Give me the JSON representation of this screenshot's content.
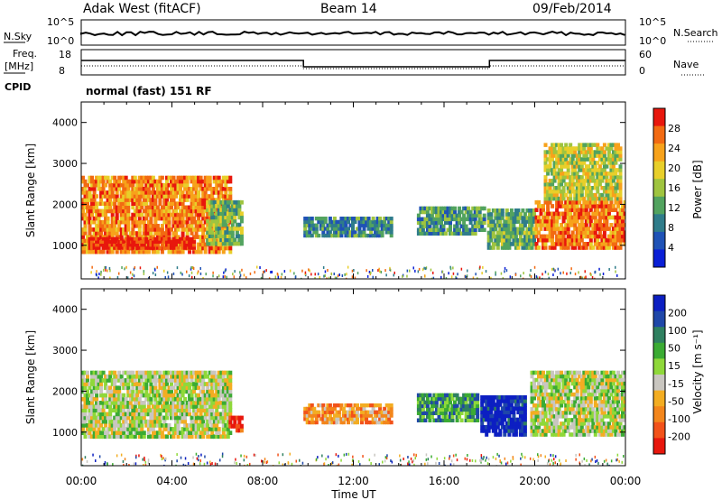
{
  "header": {
    "station": "Adak West (fitACF)",
    "beam": "Beam 14",
    "date": "09/Feb/2014"
  },
  "top_panels": {
    "nsky_label": "N.Sky",
    "nsky_ticks": [
      "10^5",
      "10^0"
    ],
    "nsearch_label": "N.Search",
    "nsearch_ticks": [
      "10^5",
      "10^0"
    ],
    "freq_label": "Freq.",
    "freq_unit": "[MHz]",
    "freq_ticks": [
      "18",
      "8"
    ],
    "nave_label": "Nave",
    "nave_ticks": [
      "60",
      "0"
    ],
    "cpid_label": "CPID",
    "cpid_text": "normal (fast) 151 RF"
  },
  "colors": {
    "power_scale": [
      "#0a1fd6",
      "#1f52b6",
      "#2f7c8a",
      "#52a35f",
      "#9fc43f",
      "#e8cf2a",
      "#f7a21b",
      "#f26a12",
      "#e8170d"
    ],
    "velocity_scale": [
      "#e8170d",
      "#f2521a",
      "#f3861c",
      "#f3ad22",
      "#c9c6c0",
      "#8fd83a",
      "#3bab33",
      "#2f8060",
      "#1f47a8",
      "#0c1fc2"
    ]
  },
  "chart_data": [
    {
      "type": "heatmap",
      "name": "power",
      "ylabel": "Slant Range [km]",
      "colorbar_label": "Power [dB]",
      "colorbar_ticks": [
        "28",
        "24",
        "20",
        "16",
        "12",
        "8",
        "4"
      ],
      "x_ticks": [
        "00:00",
        "04:00",
        "08:00",
        "12:00",
        "16:00",
        "20:00",
        "00:00"
      ],
      "y_ticks": [
        "4000",
        "3000",
        "2000",
        "1000"
      ],
      "xlim_hours": [
        0,
        24
      ],
      "ylim_km": [
        180,
        4500
      ],
      "regions": [
        {
          "t0": 0.0,
          "t1": 6.6,
          "r0": 800,
          "r1": 2700,
          "level": 0.78
        },
        {
          "t0": 0.3,
          "t1": 5.0,
          "r0": 900,
          "r1": 1200,
          "level": 0.95
        },
        {
          "t0": 5.5,
          "t1": 7.1,
          "r0": 1000,
          "r1": 2100,
          "level": 0.45
        },
        {
          "t0": 9.8,
          "t1": 13.7,
          "r0": 1200,
          "r1": 1700,
          "level": 0.3
        },
        {
          "t0": 14.8,
          "t1": 17.8,
          "r0": 1250,
          "r1": 1950,
          "level": 0.35
        },
        {
          "t0": 17.9,
          "t1": 20.0,
          "r0": 900,
          "r1": 1900,
          "level": 0.4
        },
        {
          "t0": 20.0,
          "t1": 24.0,
          "r0": 900,
          "r1": 2100,
          "level": 0.8
        },
        {
          "t0": 20.4,
          "t1": 23.8,
          "r0": 2100,
          "r1": 3500,
          "level": 0.55
        }
      ]
    },
    {
      "type": "heatmap",
      "name": "velocity",
      "ylabel": "Slant Range [km]",
      "colorbar_label": "Velocity [m s⁻¹]",
      "colorbar_ticks": [
        "200",
        "100",
        "50",
        "15",
        "-15",
        "-50",
        "-100",
        "-200"
      ],
      "x_ticks": [
        "00:00",
        "04:00",
        "08:00",
        "12:00",
        "16:00",
        "20:00",
        "00:00"
      ],
      "xlabel": "Time UT",
      "y_ticks": [
        "4000",
        "3000",
        "2000",
        "1000"
      ],
      "xlim_hours": [
        0,
        24
      ],
      "ylim_km": [
        180,
        4500
      ],
      "regions": [
        {
          "t0": 0.0,
          "t1": 6.6,
          "r0": 850,
          "r1": 2500,
          "level": 0.5
        },
        {
          "t0": 6.5,
          "t1": 7.1,
          "r0": 1000,
          "r1": 1400,
          "level": 0.05
        },
        {
          "t0": 9.8,
          "t1": 13.7,
          "r0": 1200,
          "r1": 1700,
          "level": 0.3
        },
        {
          "t0": 14.8,
          "t1": 17.5,
          "r0": 1250,
          "r1": 1950,
          "level": 0.7
        },
        {
          "t0": 17.6,
          "t1": 19.6,
          "r0": 900,
          "r1": 1900,
          "level": 0.95
        },
        {
          "t0": 19.8,
          "t1": 24.0,
          "r0": 900,
          "r1": 2500,
          "level": 0.5
        }
      ]
    }
  ]
}
